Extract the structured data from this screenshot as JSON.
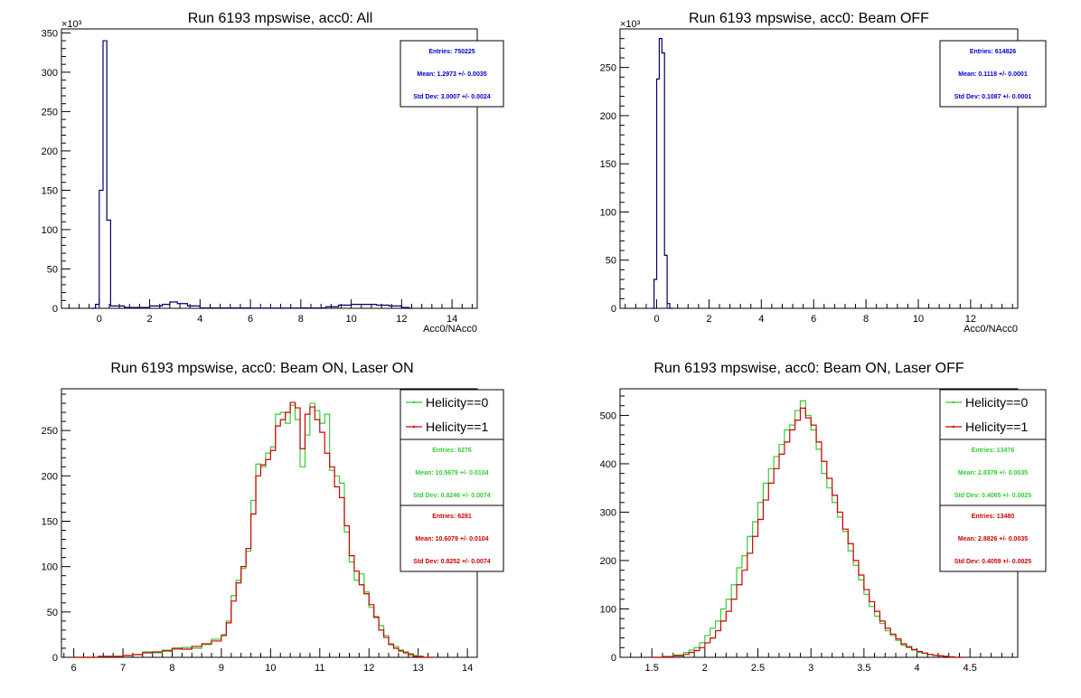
{
  "colors": {
    "blue": "#0000cc",
    "green": "#33cc33",
    "red": "#cc0000",
    "black": "#000000"
  },
  "chart_data": [
    {
      "type": "histogram",
      "title": "Run 6193 mpswise, acc0: All",
      "xlabel": "Acc0/NAcc0",
      "ylabel": "",
      "exponent": "×10³",
      "xlim": [
        -1.5,
        15
      ],
      "ylim": [
        0,
        355
      ],
      "xticks": [
        0,
        2,
        4,
        6,
        8,
        10,
        12,
        14
      ],
      "yticks": [
        0,
        50,
        100,
        150,
        200,
        250,
        300,
        350
      ],
      "series": [
        {
          "color": "#000066",
          "x": [
            -0.3,
            -0.15,
            0,
            0.15,
            0.3,
            0.45,
            1,
            2,
            2.5,
            2.8,
            3.1,
            3.5,
            4,
            6,
            8,
            9,
            9.5,
            10,
            10.5,
            11,
            11.5,
            12,
            12.3
          ],
          "y": [
            0,
            5,
            150,
            340,
            112,
            3,
            1,
            3,
            5,
            8,
            6,
            3,
            0.5,
            0.3,
            0.5,
            2,
            4,
            5,
            5,
            4,
            3,
            1,
            0
          ]
        }
      ],
      "stats": [
        {
          "lines": [
            "Entries: 750225",
            "Mean: 1.2973 +/- 0.0035",
            "Std Dev: 3.0007 +/- 0.0024"
          ],
          "color": "#0000cc"
        }
      ],
      "legend": []
    },
    {
      "type": "histogram",
      "title": "Run 6193 mpswise, acc0: Beam OFF",
      "xlabel": "Acc0/NAcc0",
      "ylabel": "",
      "exponent": "×10³",
      "xlim": [
        -1.4,
        13.8
      ],
      "ylim": [
        0,
        290
      ],
      "xticks": [
        0,
        2,
        4,
        6,
        8,
        10,
        12
      ],
      "yticks": [
        0,
        50,
        100,
        150,
        200,
        250
      ],
      "series": [
        {
          "color": "#000066",
          "x": [
            -0.2,
            -0.1,
            0,
            0.1,
            0.2,
            0.3,
            0.4,
            0.5
          ],
          "y": [
            0,
            30,
            238,
            280,
            265,
            55,
            5,
            0
          ]
        }
      ],
      "stats": [
        {
          "lines": [
            "Entries: 614826",
            "Mean: 0.1118 +/- 0.0001",
            "Std Dev: 0.1087 +/- 0.0001"
          ],
          "color": "#0000cc"
        }
      ],
      "legend": []
    },
    {
      "type": "histogram",
      "title": "Run 6193 mpswise, acc0: Beam ON, Laser ON",
      "xlabel": "",
      "ylabel": "",
      "exponent": "",
      "xlim": [
        5.75,
        14.2
      ],
      "ylim": [
        0,
        296
      ],
      "xticks": [
        6,
        7,
        8,
        9,
        10,
        11,
        12,
        13,
        14
      ],
      "yticks": [
        0,
        50,
        100,
        150,
        200,
        250
      ],
      "series": [
        {
          "name": "Helicity==0",
          "color": "#33cc33",
          "x": [
            6,
            6.5,
            7,
            7.2,
            7.4,
            7.6,
            7.8,
            8,
            8.2,
            8.4,
            8.6,
            8.8,
            9,
            9.1,
            9.2,
            9.3,
            9.4,
            9.5,
            9.6,
            9.7,
            9.8,
            9.9,
            10,
            10.1,
            10.2,
            10.3,
            10.4,
            10.5,
            10.6,
            10.7,
            10.8,
            10.9,
            11,
            11.1,
            11.2,
            11.3,
            11.4,
            11.5,
            11.6,
            11.7,
            11.8,
            11.9,
            12,
            12.1,
            12.2,
            12.3,
            12.4,
            12.5,
            12.6,
            12.7,
            12.8,
            12.9,
            13,
            13.1,
            13.2
          ],
          "y": [
            0,
            1,
            2,
            3,
            6,
            5,
            8,
            9,
            11,
            10,
            14,
            20,
            25,
            40,
            68,
            85,
            98,
            117,
            173,
            213,
            210,
            225,
            232,
            268,
            270,
            258,
            278,
            262,
            210,
            245,
            280,
            272,
            258,
            268,
            206,
            200,
            192,
            138,
            105,
            85,
            92,
            72,
            55,
            45,
            35,
            24,
            15,
            12,
            8,
            6,
            4,
            2,
            1,
            0,
            0
          ]
        },
        {
          "name": "Helicity==1",
          "color": "#cc0000",
          "x": [
            6,
            6.5,
            7,
            7.2,
            7.4,
            7.6,
            7.8,
            8,
            8.2,
            8.4,
            8.6,
            8.8,
            9,
            9.1,
            9.2,
            9.3,
            9.4,
            9.5,
            9.6,
            9.7,
            9.8,
            9.9,
            10,
            10.1,
            10.2,
            10.3,
            10.4,
            10.5,
            10.6,
            10.7,
            10.8,
            10.9,
            11,
            11.1,
            11.2,
            11.3,
            11.4,
            11.5,
            11.6,
            11.7,
            11.8,
            11.9,
            12,
            12.1,
            12.2,
            12.3,
            12.4,
            12.5,
            12.6,
            12.7,
            12.8,
            12.9,
            13,
            13.1,
            13.2
          ],
          "y": [
            0,
            1,
            2,
            3,
            5,
            6,
            7,
            10,
            9,
            12,
            15,
            18,
            24,
            38,
            62,
            82,
            100,
            120,
            158,
            200,
            212,
            218,
            228,
            255,
            262,
            270,
            281,
            275,
            230,
            268,
            276,
            262,
            248,
            225,
            210,
            188,
            176,
            145,
            112,
            95,
            80,
            70,
            58,
            44,
            30,
            22,
            14,
            10,
            7,
            5,
            3,
            1,
            1,
            0,
            0
          ]
        }
      ],
      "stats": [
        {
          "lines": [
            "Entries: 6276",
            "Mean: 10.5679 +/- 0.0104",
            "Std Dev: 0.8246 +/- 0.0074"
          ],
          "color": "#33cc33"
        },
        {
          "lines": [
            "Entries: 6281",
            "Mean: 10.6079 +/- 0.0104",
            "Std Dev: 0.8252 +/- 0.0074"
          ],
          "color": "#cc0000"
        }
      ],
      "legend": [
        {
          "label": "Helicity==0",
          "color": "#33cc33"
        },
        {
          "label": "Helicity==1",
          "color": "#cc0000"
        }
      ]
    },
    {
      "type": "histogram",
      "title": "Run 6193 mpswise, acc0: Beam ON, Laser OFF",
      "xlabel": "",
      "ylabel": "",
      "exponent": "",
      "xlim": [
        1.2,
        4.95
      ],
      "ylim": [
        0,
        555
      ],
      "xticks": [
        1.5,
        2,
        2.5,
        3,
        3.5,
        4,
        4.5
      ],
      "yticks": [
        0,
        100,
        200,
        300,
        400,
        500
      ],
      "series": [
        {
          "name": "Helicity==0",
          "color": "#33cc33",
          "x": [
            1.5,
            1.6,
            1.7,
            1.8,
            1.85,
            1.9,
            1.95,
            2,
            2.05,
            2.1,
            2.15,
            2.2,
            2.25,
            2.3,
            2.35,
            2.4,
            2.45,
            2.5,
            2.55,
            2.6,
            2.65,
            2.7,
            2.75,
            2.8,
            2.85,
            2.9,
            2.95,
            3,
            3.05,
            3.1,
            3.15,
            3.2,
            3.25,
            3.3,
            3.35,
            3.4,
            3.45,
            3.5,
            3.55,
            3.6,
            3.65,
            3.7,
            3.75,
            3.8,
            3.85,
            3.9,
            3.95,
            4,
            4.05,
            4.1,
            4.15,
            4.2,
            4.25,
            4.3,
            4.35,
            4.4
          ],
          "y": [
            0,
            2,
            5,
            10,
            15,
            20,
            30,
            45,
            60,
            75,
            100,
            120,
            150,
            185,
            210,
            250,
            280,
            320,
            360,
            390,
            415,
            440,
            470,
            480,
            510,
            530,
            500,
            470,
            430,
            380,
            350,
            320,
            290,
            260,
            220,
            190,
            160,
            130,
            105,
            85,
            70,
            55,
            45,
            35,
            25,
            20,
            15,
            10,
            8,
            6,
            4,
            3,
            2,
            1,
            0,
            0
          ]
        },
        {
          "name": "Helicity==1",
          "color": "#cc0000",
          "x": [
            1.5,
            1.6,
            1.7,
            1.8,
            1.85,
            1.9,
            1.95,
            2,
            2.05,
            2.1,
            2.15,
            2.2,
            2.25,
            2.3,
            2.35,
            2.4,
            2.45,
            2.5,
            2.55,
            2.6,
            2.65,
            2.7,
            2.75,
            2.8,
            2.85,
            2.9,
            2.95,
            3,
            3.05,
            3.1,
            3.15,
            3.2,
            3.25,
            3.3,
            3.35,
            3.4,
            3.45,
            3.5,
            3.55,
            3.6,
            3.65,
            3.7,
            3.75,
            3.8,
            3.85,
            3.9,
            3.95,
            4,
            4.05,
            4.1,
            4.15,
            4.2,
            4.25,
            4.3,
            4.35,
            4.4
          ],
          "y": [
            0,
            1,
            3,
            6,
            10,
            14,
            20,
            30,
            40,
            55,
            75,
            95,
            120,
            150,
            180,
            215,
            250,
            285,
            325,
            360,
            390,
            420,
            445,
            470,
            490,
            515,
            495,
            480,
            445,
            405,
            370,
            335,
            300,
            265,
            235,
            200,
            170,
            140,
            115,
            95,
            75,
            60,
            48,
            38,
            28,
            22,
            16,
            12,
            9,
            6,
            4,
            3,
            2,
            1,
            0,
            0
          ]
        }
      ],
      "stats": [
        {
          "lines": [
            "Entries: 13476",
            "Mean: 2.8379 +/- 0.0035",
            "Std Dev: 0.4065 +/- 0.0025"
          ],
          "color": "#33cc33"
        },
        {
          "lines": [
            "Entries: 13480",
            "Mean: 2.8826 +/- 0.0035",
            "Std Dev: 0.4059 +/- 0.0025"
          ],
          "color": "#cc0000"
        }
      ],
      "legend": [
        {
          "label": "Helicity==0",
          "color": "#33cc33"
        },
        {
          "label": "Helicity==1",
          "color": "#cc0000"
        }
      ]
    }
  ]
}
